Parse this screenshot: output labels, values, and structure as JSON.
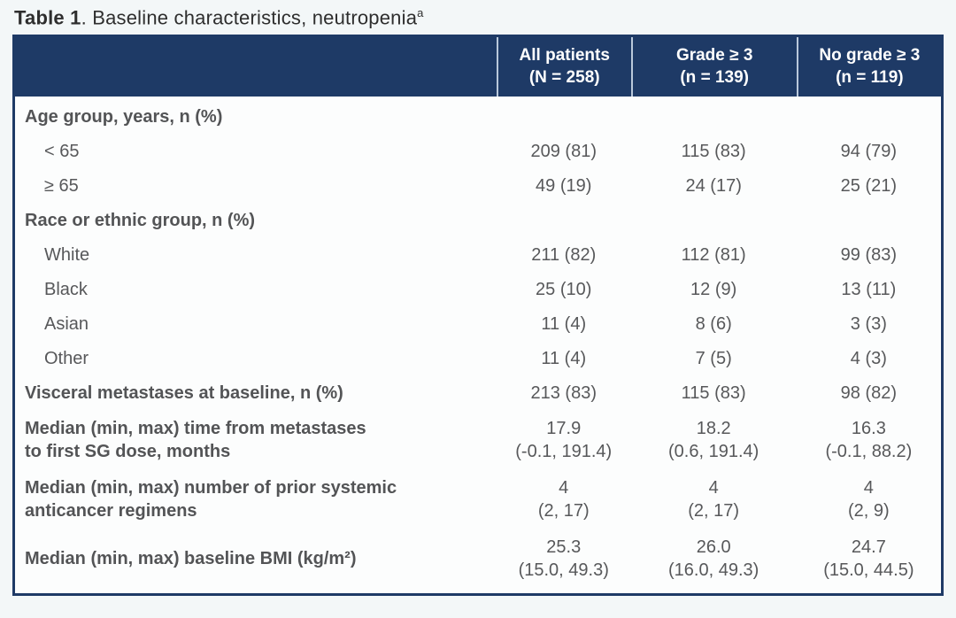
{
  "title": {
    "prefix": "Table 1",
    "rest": ". Baseline characteristics, neutropenia",
    "footnote_marker": "a"
  },
  "colors": {
    "header_bg": "#1e3a66",
    "header_text": "#ffffff",
    "header_divider": "#b9c8db",
    "table_border": "#1e3a66",
    "table_bg": "#fcfdfd",
    "body_text": "#57585a",
    "page_bg": "#f3f7f8"
  },
  "table": {
    "columns": [
      {
        "label": "All patients\n(N = 258)"
      },
      {
        "label": "Grade ≥ 3\n(n = 139)"
      },
      {
        "label": "No grade ≥ 3\n(n = 119)"
      }
    ],
    "rows": [
      {
        "type": "group",
        "label": "Age group, years, n (%)",
        "values": [
          "",
          "",
          ""
        ]
      },
      {
        "type": "sub",
        "label": "< 65",
        "values": [
          "209 (81)",
          "115 (83)",
          "94 (79)"
        ]
      },
      {
        "type": "sub",
        "label": "≥ 65",
        "values": [
          "49 (19)",
          "24 (17)",
          "25 (21)"
        ]
      },
      {
        "type": "group",
        "label": "Race or ethnic group, n (%)",
        "values": [
          "",
          "",
          ""
        ]
      },
      {
        "type": "sub",
        "label": "White",
        "values": [
          "211 (82)",
          "112 (81)",
          "99 (83)"
        ]
      },
      {
        "type": "sub",
        "label": "Black",
        "values": [
          "25 (10)",
          "12 (9)",
          "13 (11)"
        ]
      },
      {
        "type": "sub",
        "label": "Asian",
        "values": [
          "11 (4)",
          "8 (6)",
          "3 (3)"
        ]
      },
      {
        "type": "sub",
        "label": "Other",
        "values": [
          "11 (4)",
          "7 (5)",
          "4 (3)"
        ]
      },
      {
        "type": "metric",
        "label": "Visceral metastases at baseline, n (%)",
        "values": [
          "213 (83)",
          "115 (83)",
          "98 (82)"
        ]
      },
      {
        "type": "metric",
        "label": "Median (min, max) time from metastases\nto first SG dose, months",
        "values": [
          "17.9\n(-0.1, 191.4)",
          "18.2\n(0.6, 191.4)",
          "16.3\n(-0.1, 88.2)"
        ]
      },
      {
        "type": "metric",
        "label": "Median (min, max) number of prior systemic\nanticancer regimens",
        "values": [
          "4\n(2, 17)",
          "4\n(2, 17)",
          "4\n(2, 9)"
        ]
      },
      {
        "type": "metric",
        "label": "Median (min, max) baseline BMI (kg/m²)",
        "values": [
          "25.3\n(15.0, 49.3)",
          "26.0\n(16.0, 49.3)",
          "24.7\n(15.0, 44.5)"
        ]
      }
    ]
  }
}
